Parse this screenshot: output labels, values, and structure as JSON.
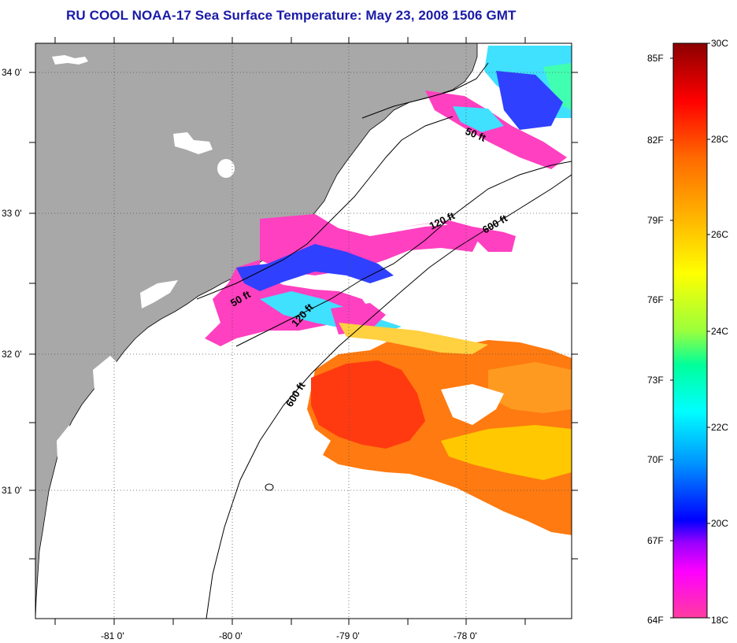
{
  "title": "RU COOL  NOAA-17  Sea Surface Temperature:  May 23, 2008 1506 GMT",
  "map": {
    "lat_labels": [
      "34 0'",
      "33 0'",
      "32 0'",
      "31 0'"
    ],
    "lon_labels": [
      "-81 0'",
      "-80 0'",
      "-79 0'",
      "-78 0'"
    ],
    "contour_labels": [
      "50 ft",
      "120 ft",
      "600 ft",
      "50 ft",
      "120 ft",
      "600 ft"
    ]
  },
  "colorbar": {
    "f_labels": [
      "85F",
      "82F",
      "79F",
      "76F",
      "73F",
      "70F",
      "67F",
      "64F"
    ],
    "c_labels": [
      "30C",
      "28C",
      "26C",
      "24C",
      "22C",
      "20C",
      "18C"
    ],
    "colors": [
      "#8b0000",
      "#ff0000",
      "#ff6a00",
      "#ffc800",
      "#ffff00",
      "#9bff3c",
      "#00ff9b",
      "#00ffff",
      "#0096ff",
      "#0000ff",
      "#9b00ff",
      "#ff00ff",
      "#ff3ca0"
    ]
  },
  "sst_colors": {
    "warm": "#ff7a10",
    "hot": "#ff3a10",
    "cold": "#ff40c0",
    "blue": "#3040ff",
    "cyan": "#40e0ff",
    "land": "#a8a8a8"
  }
}
